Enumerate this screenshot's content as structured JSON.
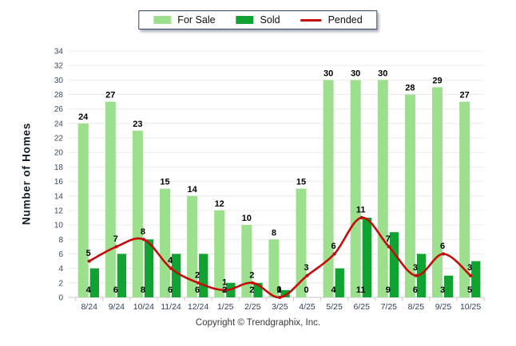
{
  "legend": {
    "items": [
      {
        "label": "For Sale",
        "swatch": "bar"
      },
      {
        "label": "Sold",
        "swatch": "bar"
      },
      {
        "label": "Pended",
        "swatch": "line"
      }
    ]
  },
  "copyright": "Copyright © Trendgraphix, Inc.",
  "colors": {
    "for_sale": "#9cdf8d",
    "sold": "#10a332",
    "pended": "#c50b0b",
    "grid": "#ebebeb",
    "axis": "#c9c9c9",
    "y_tick_text": "#3a4a5e",
    "x_tick_text": "#2e3f5c",
    "data_label_text": "#000000",
    "legend_border": "#33456b"
  },
  "chart_data": {
    "type": "bar",
    "subtype": "grouped-bars-with-spline-line",
    "categories": [
      "8/24",
      "9/24",
      "10/24",
      "11/24",
      "12/24",
      "1/25",
      "2/25",
      "3/25",
      "4/25",
      "5/25",
      "6/25",
      "7/25",
      "8/25",
      "9/25",
      "10/25"
    ],
    "series": [
      {
        "name": "For Sale",
        "type": "bar",
        "values": [
          24,
          27,
          23,
          15,
          14,
          12,
          10,
          8,
          15,
          30,
          30,
          30,
          28,
          29,
          27
        ]
      },
      {
        "name": "Sold",
        "type": "bar",
        "values": [
          4,
          6,
          8,
          6,
          6,
          2,
          2,
          1,
          0,
          4,
          11,
          9,
          6,
          3,
          5
        ]
      },
      {
        "name": "Pended",
        "type": "line",
        "values": [
          5,
          7,
          8,
          4,
          2,
          1,
          2,
          0,
          3,
          6,
          11,
          7,
          3,
          6,
          3
        ]
      }
    ],
    "ylabel": "Number of Homes",
    "xlabel": "",
    "ylim": [
      0,
      34
    ],
    "ytick_step": 2,
    "grid": true,
    "legend_position": "top-center"
  }
}
